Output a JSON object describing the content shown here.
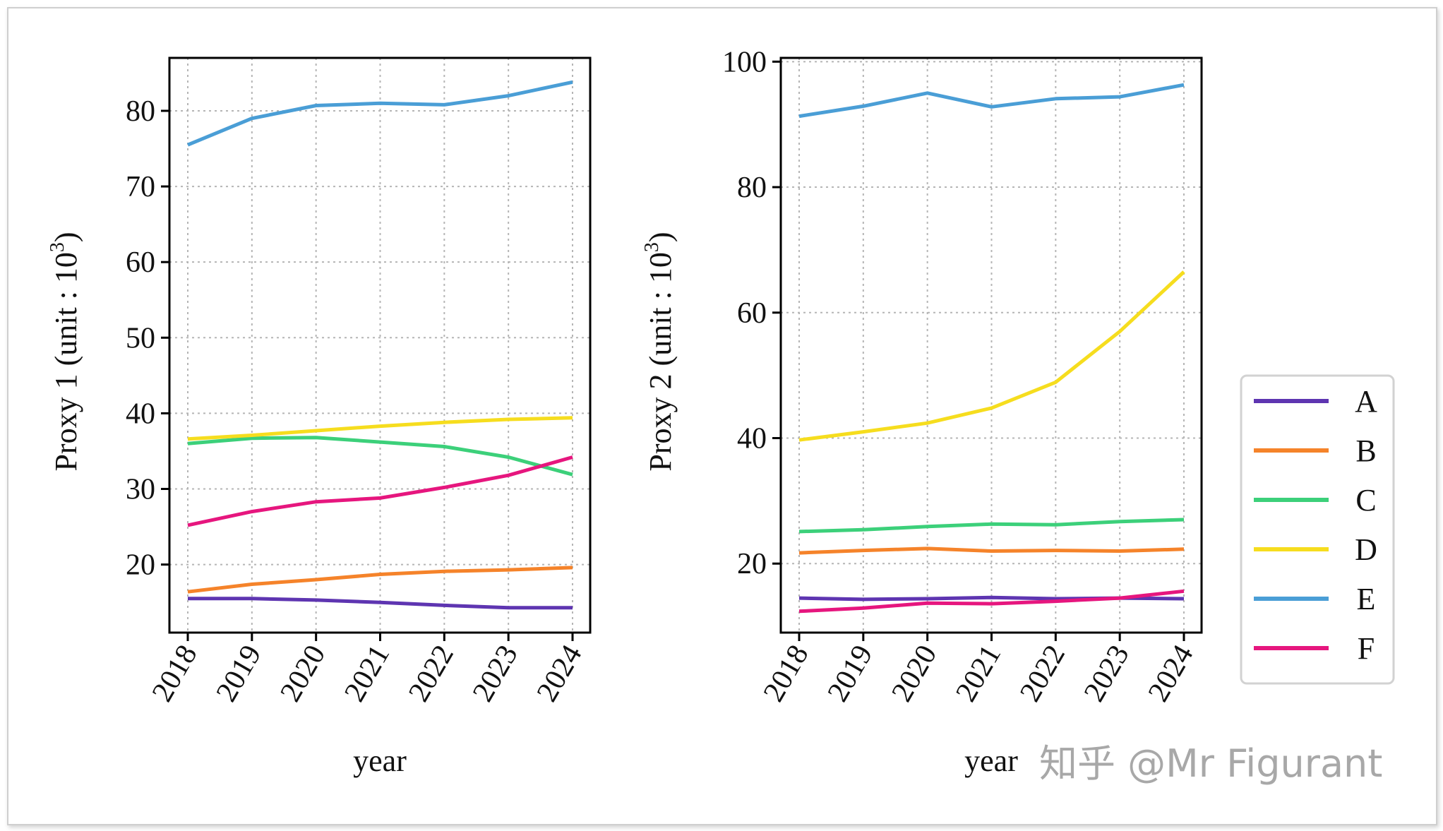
{
  "chart_data": [
    {
      "type": "line",
      "x": [
        2018,
        2019,
        2020,
        2021,
        2022,
        2023,
        2024
      ],
      "xticklabels": [
        "2018",
        "2019",
        "2020",
        "2021",
        "2022",
        "2023",
        "2024"
      ],
      "xlabel": "year",
      "ylabel": "Proxy 1 (unit : 10³)",
      "ylabel_main": "Proxy 1 (unit : 10",
      "ylabel_sup": "3",
      "ylabel_end": ")",
      "ylim": [
        11,
        87
      ],
      "yticks": [
        20,
        30,
        40,
        50,
        60,
        70,
        80
      ],
      "grid": true,
      "series": [
        {
          "name": "A",
          "color": "#5e35b1",
          "values": [
            15.5,
            15.5,
            15.3,
            15.0,
            14.6,
            14.3,
            14.3
          ]
        },
        {
          "name": "B",
          "color": "#f5832a",
          "values": [
            16.4,
            17.4,
            18.0,
            18.7,
            19.1,
            19.3,
            19.6
          ]
        },
        {
          "name": "C",
          "color": "#3cd07a",
          "values": [
            36.0,
            36.7,
            36.8,
            36.2,
            35.6,
            34.2,
            31.9
          ]
        },
        {
          "name": "D",
          "color": "#f6dd1e",
          "values": [
            36.6,
            37.1,
            37.7,
            38.3,
            38.8,
            39.2,
            39.4
          ]
        },
        {
          "name": "E",
          "color": "#4a9ed6",
          "values": [
            75.5,
            79.0,
            80.7,
            81.0,
            80.8,
            82.0,
            83.8
          ]
        },
        {
          "name": "F",
          "color": "#e6167e",
          "values": [
            25.2,
            27.0,
            28.3,
            28.8,
            30.2,
            31.8,
            34.2
          ]
        }
      ]
    },
    {
      "type": "line",
      "x": [
        2018,
        2019,
        2020,
        2021,
        2022,
        2023,
        2024
      ],
      "xticklabels": [
        "2018",
        "2019",
        "2020",
        "2021",
        "2022",
        "2023",
        "2024"
      ],
      "xlabel": "year",
      "ylabel": "Proxy 2 (unit : 10³)",
      "ylabel_main": "Proxy 2 (unit : 10",
      "ylabel_sup": "3",
      "ylabel_end": ")",
      "ylim": [
        9,
        100.6
      ],
      "yticks": [
        20,
        40,
        60,
        80,
        100
      ],
      "grid": true,
      "series": [
        {
          "name": "A",
          "color": "#5e35b1",
          "values": [
            14.5,
            14.3,
            14.4,
            14.6,
            14.4,
            14.5,
            14.4
          ]
        },
        {
          "name": "B",
          "color": "#f5832a",
          "values": [
            21.7,
            22.1,
            22.4,
            22.0,
            22.1,
            22.0,
            22.3
          ]
        },
        {
          "name": "C",
          "color": "#3cd07a",
          "values": [
            25.1,
            25.4,
            25.9,
            26.3,
            26.2,
            26.7,
            27.0
          ]
        },
        {
          "name": "D",
          "color": "#f6dd1e",
          "values": [
            39.7,
            41.0,
            42.4,
            44.8,
            48.9,
            57.0,
            66.5
          ]
        },
        {
          "name": "E",
          "color": "#4a9ed6",
          "values": [
            91.3,
            92.9,
            95.0,
            92.8,
            94.1,
            94.4,
            96.3
          ]
        },
        {
          "name": "F",
          "color": "#e6167e",
          "values": [
            12.4,
            12.9,
            13.7,
            13.6,
            14.0,
            14.5,
            15.6
          ]
        }
      ]
    }
  ],
  "legend": {
    "placement": "right",
    "entries": [
      {
        "label": "A",
        "color": "#5e35b1"
      },
      {
        "label": "B",
        "color": "#f5832a"
      },
      {
        "label": "C",
        "color": "#3cd07a"
      },
      {
        "label": "D",
        "color": "#f6dd1e"
      },
      {
        "label": "E",
        "color": "#4a9ed6"
      },
      {
        "label": "F",
        "color": "#e6167e"
      }
    ]
  },
  "watermark": "知乎 @Mr Figurant"
}
